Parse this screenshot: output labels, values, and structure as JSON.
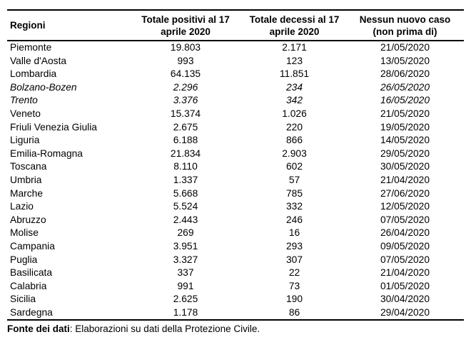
{
  "table": {
    "columns": [
      {
        "line1": "Regioni",
        "line2": ""
      },
      {
        "line1": "Totale positivi al 17",
        "line2": "aprile 2020"
      },
      {
        "line1": "Totale decessi al 17",
        "line2": "aprile 2020"
      },
      {
        "line1": "Nessun nuovo caso",
        "line2": "(non prima di)"
      }
    ],
    "rows": [
      {
        "region": "Piemonte",
        "positivi": "19.803",
        "decessi": "2.171",
        "data": "21/05/2020",
        "italic": false
      },
      {
        "region": "Valle d'Aosta",
        "positivi": "993",
        "decessi": "123",
        "data": "13/05/2020",
        "italic": false
      },
      {
        "region": "Lombardia",
        "positivi": "64.135",
        "decessi": "11.851",
        "data": "28/06/2020",
        "italic": false
      },
      {
        "region": "Bolzano-Bozen",
        "positivi": "2.296",
        "decessi": "234",
        "data": "26/05/2020",
        "italic": true
      },
      {
        "region": "Trento",
        "positivi": "3.376",
        "decessi": "342",
        "data": "16/05/2020",
        "italic": true
      },
      {
        "region": "Veneto",
        "positivi": "15.374",
        "decessi": "1.026",
        "data": "21/05/2020",
        "italic": false
      },
      {
        "region": "Friuli Venezia Giulia",
        "positivi": "2.675",
        "decessi": "220",
        "data": "19/05/2020",
        "italic": false
      },
      {
        "region": "Liguria",
        "positivi": "6.188",
        "decessi": "866",
        "data": "14/05/2020",
        "italic": false
      },
      {
        "region": "Emilia-Romagna",
        "positivi": "21.834",
        "decessi": "2.903",
        "data": "29/05/2020",
        "italic": false
      },
      {
        "region": "Toscana",
        "positivi": "8.110",
        "decessi": "602",
        "data": "30/05/2020",
        "italic": false
      },
      {
        "region": "Umbria",
        "positivi": "1.337",
        "decessi": "57",
        "data": "21/04/2020",
        "italic": false
      },
      {
        "region": "Marche",
        "positivi": "5.668",
        "decessi": "785",
        "data": "27/06/2020",
        "italic": false
      },
      {
        "region": "Lazio",
        "positivi": "5.524",
        "decessi": "332",
        "data": "12/05/2020",
        "italic": false
      },
      {
        "region": "Abruzzo",
        "positivi": "2.443",
        "decessi": "246",
        "data": "07/05/2020",
        "italic": false
      },
      {
        "region": "Molise",
        "positivi": "269",
        "decessi": "16",
        "data": "26/04/2020",
        "italic": false
      },
      {
        "region": "Campania",
        "positivi": "3.951",
        "decessi": "293",
        "data": "09/05/2020",
        "italic": false
      },
      {
        "region": "Puglia",
        "positivi": "3.327",
        "decessi": "307",
        "data": "07/05/2020",
        "italic": false
      },
      {
        "region": "Basilicata",
        "positivi": "337",
        "decessi": "22",
        "data": "21/04/2020",
        "italic": false
      },
      {
        "region": "Calabria",
        "positivi": "991",
        "decessi": "73",
        "data": "01/05/2020",
        "italic": false
      },
      {
        "region": "Sicilia",
        "positivi": "2.625",
        "decessi": "190",
        "data": "30/04/2020",
        "italic": false
      },
      {
        "region": "Sardegna",
        "positivi": "1.178",
        "decessi": "86",
        "data": "29/04/2020",
        "italic": false
      }
    ]
  },
  "footer": {
    "bold": "Fonte dei dati",
    "rest": ": Elaborazioni su dati della Protezione Civile."
  }
}
